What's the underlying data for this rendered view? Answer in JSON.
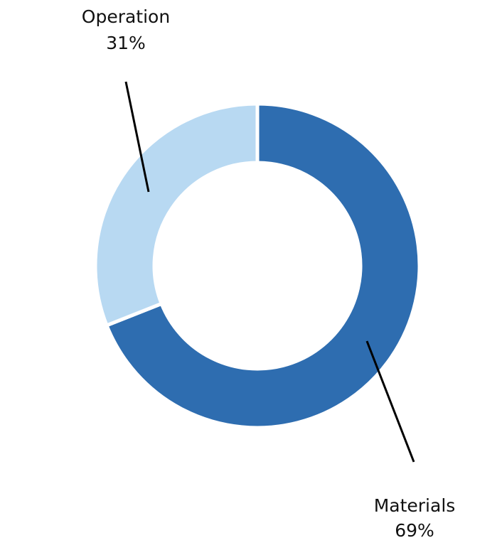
{
  "chart_data": {
    "type": "pie",
    "donut": true,
    "categories": [
      "Materials",
      "Operation"
    ],
    "values": [
      69,
      31
    ],
    "value_labels": [
      "69%",
      "31%"
    ],
    "colors": [
      "#2e6db0",
      "#b8d9f2"
    ]
  }
}
